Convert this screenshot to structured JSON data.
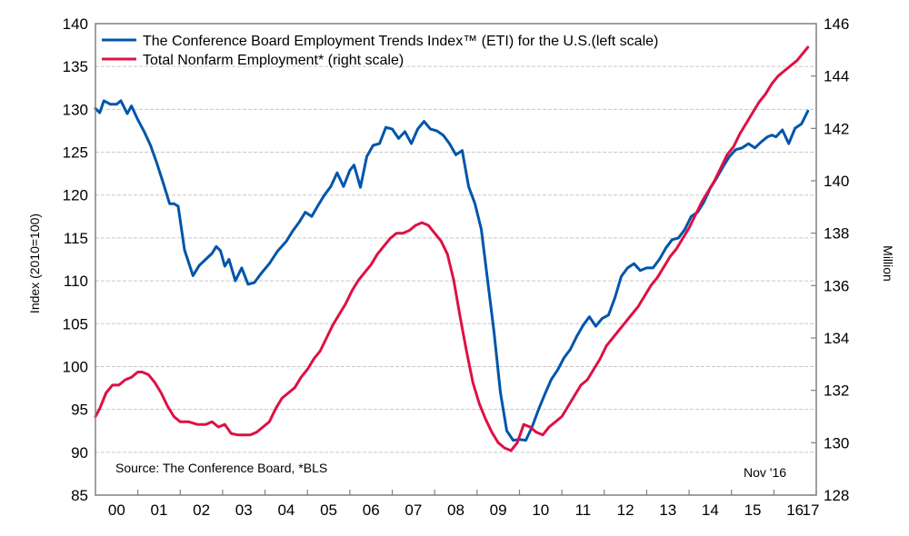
{
  "chart_data": {
    "type": "line",
    "title": "",
    "legend_position": "top-left",
    "left_axis": {
      "label": "Index (2010=100)",
      "range": [
        85,
        140
      ],
      "ticks": [
        140,
        135,
        130,
        125,
        120,
        115,
        110,
        105,
        100,
        95,
        90,
        85
      ]
    },
    "right_axis": {
      "label": "Million",
      "range": [
        128,
        146
      ],
      "ticks": [
        146,
        144,
        142,
        140,
        138,
        136,
        134,
        132,
        130,
        128
      ]
    },
    "x_axis": {
      "label": "",
      "range": [
        2000,
        2017
      ],
      "tick_labels": [
        "00",
        "01",
        "02",
        "03",
        "04",
        "05",
        "06",
        "07",
        "08",
        "09",
        "10",
        "11",
        "12",
        "13",
        "14",
        "15",
        "16",
        "17"
      ]
    },
    "grid": true,
    "source_note": "Source: The Conference Board, *BLS",
    "date_note": "Nov '16",
    "series": [
      {
        "name": "The Conference Board Employment Trends Index™ (ETI) for the U.S.(left scale)",
        "axis": "left",
        "color": "#0055aa",
        "x": [
          2000.0,
          2000.1,
          2000.2,
          2000.35,
          2000.5,
          2000.6,
          2000.75,
          2000.85,
          2001.0,
          2001.15,
          2001.3,
          2001.45,
          2001.6,
          2001.75,
          2001.85,
          2001.95,
          2002.1,
          2002.3,
          2002.45,
          2002.6,
          2002.75,
          2002.85,
          2002.95,
          2003.05,
          2003.15,
          2003.3,
          2003.45,
          2003.6,
          2003.75,
          2003.9,
          2004.1,
          2004.3,
          2004.5,
          2004.65,
          2004.8,
          2004.95,
          2005.1,
          2005.25,
          2005.4,
          2005.55,
          2005.7,
          2005.85,
          2006.0,
          2006.1,
          2006.25,
          2006.4,
          2006.55,
          2006.7,
          2006.85,
          2007.0,
          2007.15,
          2007.3,
          2007.45,
          2007.6,
          2007.75,
          2007.9,
          2008.05,
          2008.2,
          2008.35,
          2008.5,
          2008.65,
          2008.8,
          2008.95,
          2009.1,
          2009.25,
          2009.4,
          2009.55,
          2009.7,
          2009.85,
          2010.0,
          2010.15,
          2010.3,
          2010.45,
          2010.6,
          2010.75,
          2010.9,
          2011.05,
          2011.2,
          2011.35,
          2011.5,
          2011.65,
          2011.8,
          2011.95,
          2012.1,
          2012.25,
          2012.4,
          2012.55,
          2012.7,
          2012.85,
          2013.0,
          2013.15,
          2013.3,
          2013.45,
          2013.6,
          2013.75,
          2013.9,
          2014.05,
          2014.2,
          2014.35,
          2014.5,
          2014.65,
          2014.8,
          2014.95,
          2015.1,
          2015.25,
          2015.4,
          2015.55,
          2015.7,
          2015.85,
          2015.95,
          2016.05,
          2016.2,
          2016.35,
          2016.5,
          2016.65,
          2016.8
        ],
        "values": [
          130.1,
          129.6,
          131.0,
          130.6,
          130.6,
          131.0,
          129.5,
          130.4,
          128.8,
          127.4,
          125.8,
          123.7,
          121.4,
          119.0,
          119.0,
          118.7,
          113.6,
          110.6,
          111.8,
          112.5,
          113.2,
          114.0,
          113.5,
          111.7,
          112.5,
          110.0,
          111.5,
          109.6,
          109.8,
          110.8,
          112.0,
          113.5,
          114.6,
          115.8,
          116.8,
          118.0,
          117.5,
          118.8,
          120.0,
          121.0,
          122.6,
          121.0,
          122.9,
          123.5,
          120.9,
          124.5,
          125.8,
          126.0,
          127.9,
          127.7,
          126.6,
          127.4,
          126.0,
          127.7,
          128.6,
          127.7,
          127.5,
          127.0,
          126.0,
          124.7,
          125.2,
          121.0,
          119.0,
          116.0,
          110.0,
          104.0,
          97.0,
          92.5,
          91.4,
          91.5,
          91.4,
          93.0,
          95.0,
          96.8,
          98.5,
          99.6,
          101.0,
          102.0,
          103.5,
          104.8,
          105.8,
          104.7,
          105.6,
          106.0,
          108.0,
          110.5,
          111.5,
          112.0,
          111.2,
          111.5,
          111.5,
          112.5,
          113.8,
          114.8,
          115.0,
          116.0,
          117.5,
          118.0,
          119.2,
          120.8,
          122.0,
          123.3,
          124.5,
          125.3,
          125.5,
          126.0,
          125.5,
          126.2,
          126.8,
          127.0,
          126.8,
          127.6,
          126.0,
          127.8,
          128.3,
          129.8
        ]
      },
      {
        "name": "Total Nonfarm Employment* (right scale)",
        "axis": "right",
        "color": "#dd1144",
        "x": [
          2000.0,
          2000.1,
          2000.25,
          2000.4,
          2000.55,
          2000.7,
          2000.85,
          2001.0,
          2001.1,
          2001.25,
          2001.4,
          2001.55,
          2001.7,
          2001.85,
          2002.0,
          2002.2,
          2002.4,
          2002.6,
          2002.75,
          2002.9,
          2003.05,
          2003.2,
          2003.35,
          2003.5,
          2003.65,
          2003.8,
          2003.95,
          2004.1,
          2004.25,
          2004.4,
          2004.55,
          2004.7,
          2004.85,
          2005.0,
          2005.15,
          2005.3,
          2005.45,
          2005.6,
          2005.75,
          2005.9,
          2006.05,
          2006.2,
          2006.35,
          2006.5,
          2006.65,
          2006.8,
          2006.95,
          2007.1,
          2007.25,
          2007.4,
          2007.55,
          2007.7,
          2007.85,
          2008.0,
          2008.15,
          2008.3,
          2008.45,
          2008.6,
          2008.75,
          2008.9,
          2009.05,
          2009.2,
          2009.35,
          2009.5,
          2009.65,
          2009.8,
          2009.95,
          2010.1,
          2010.25,
          2010.4,
          2010.55,
          2010.7,
          2010.85,
          2011.0,
          2011.15,
          2011.3,
          2011.45,
          2011.6,
          2011.75,
          2011.9,
          2012.05,
          2012.2,
          2012.35,
          2012.5,
          2012.65,
          2012.8,
          2012.95,
          2013.1,
          2013.25,
          2013.4,
          2013.55,
          2013.7,
          2013.85,
          2014.0,
          2014.15,
          2014.3,
          2014.45,
          2014.6,
          2014.75,
          2014.9,
          2015.05,
          2015.2,
          2015.35,
          2015.5,
          2015.65,
          2015.8,
          2015.95,
          2016.1,
          2016.25,
          2016.4,
          2016.55,
          2016.8
        ],
        "values": [
          131.0,
          131.3,
          131.9,
          132.2,
          132.2,
          132.4,
          132.5,
          132.7,
          132.7,
          132.6,
          132.3,
          131.9,
          131.4,
          131.0,
          130.8,
          130.8,
          130.7,
          130.7,
          130.8,
          130.6,
          130.7,
          130.35,
          130.3,
          130.3,
          130.3,
          130.4,
          130.6,
          130.8,
          131.3,
          131.7,
          131.9,
          132.1,
          132.5,
          132.8,
          133.2,
          133.5,
          134.0,
          134.5,
          134.9,
          135.3,
          135.8,
          136.2,
          136.5,
          136.8,
          137.2,
          137.5,
          137.8,
          138.0,
          138.0,
          138.1,
          138.3,
          138.4,
          138.3,
          138.0,
          137.7,
          137.2,
          136.2,
          134.8,
          133.5,
          132.3,
          131.5,
          130.9,
          130.4,
          130.0,
          129.8,
          129.7,
          130.0,
          130.7,
          130.6,
          130.4,
          130.3,
          130.6,
          130.8,
          131.0,
          131.4,
          131.8,
          132.2,
          132.4,
          132.8,
          133.2,
          133.7,
          134.0,
          134.3,
          134.6,
          134.9,
          135.2,
          135.6,
          136.0,
          136.3,
          136.7,
          137.1,
          137.4,
          137.8,
          138.2,
          138.7,
          139.2,
          139.6,
          140.0,
          140.5,
          141.0,
          141.3,
          141.8,
          142.2,
          142.6,
          143.0,
          143.3,
          143.7,
          144.0,
          144.2,
          144.4,
          144.6,
          145.1
        ]
      }
    ]
  }
}
